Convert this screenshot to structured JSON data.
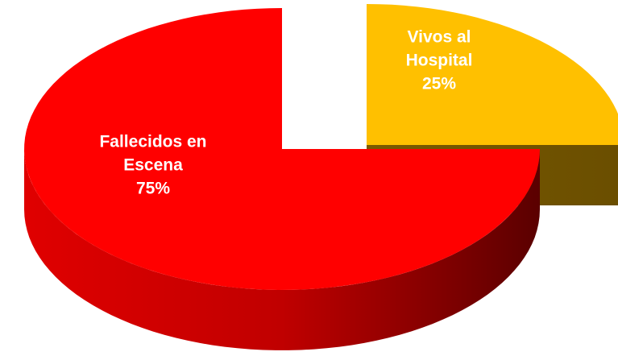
{
  "chart_data": {
    "type": "pie",
    "categories": [
      "Vivos al Hospital",
      "Fallecidos en Escena"
    ],
    "values": [
      25,
      75
    ],
    "value_labels": [
      "25%",
      "75%"
    ],
    "colors": [
      "#ffc000",
      "#ff0000"
    ],
    "exploded": [
      true,
      false
    ]
  }
}
